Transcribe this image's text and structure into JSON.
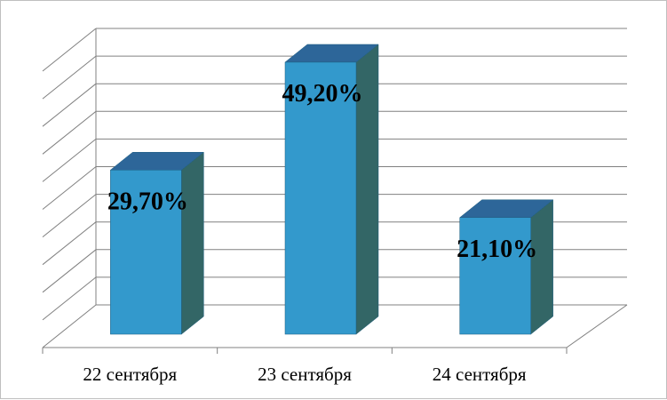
{
  "chart_data": {
    "type": "bar",
    "categories": [
      "22 сентября",
      "23 сентября",
      "24 сентября"
    ],
    "values": [
      29.7,
      49.2,
      21.1
    ],
    "data_labels": [
      "29,70%",
      "49,20%",
      "21,10%"
    ],
    "title": "",
    "xlabel": "",
    "ylabel": "",
    "ylim": [
      0,
      50
    ],
    "grid": true,
    "legend": "none",
    "three_d": true
  },
  "colors": {
    "bar_front": "#3399cc",
    "bar_side": "#336666",
    "bar_top": "#2d6699",
    "bar_edge": "#1f5f80",
    "grid": "#808080",
    "frame": "#bfbfbf"
  }
}
